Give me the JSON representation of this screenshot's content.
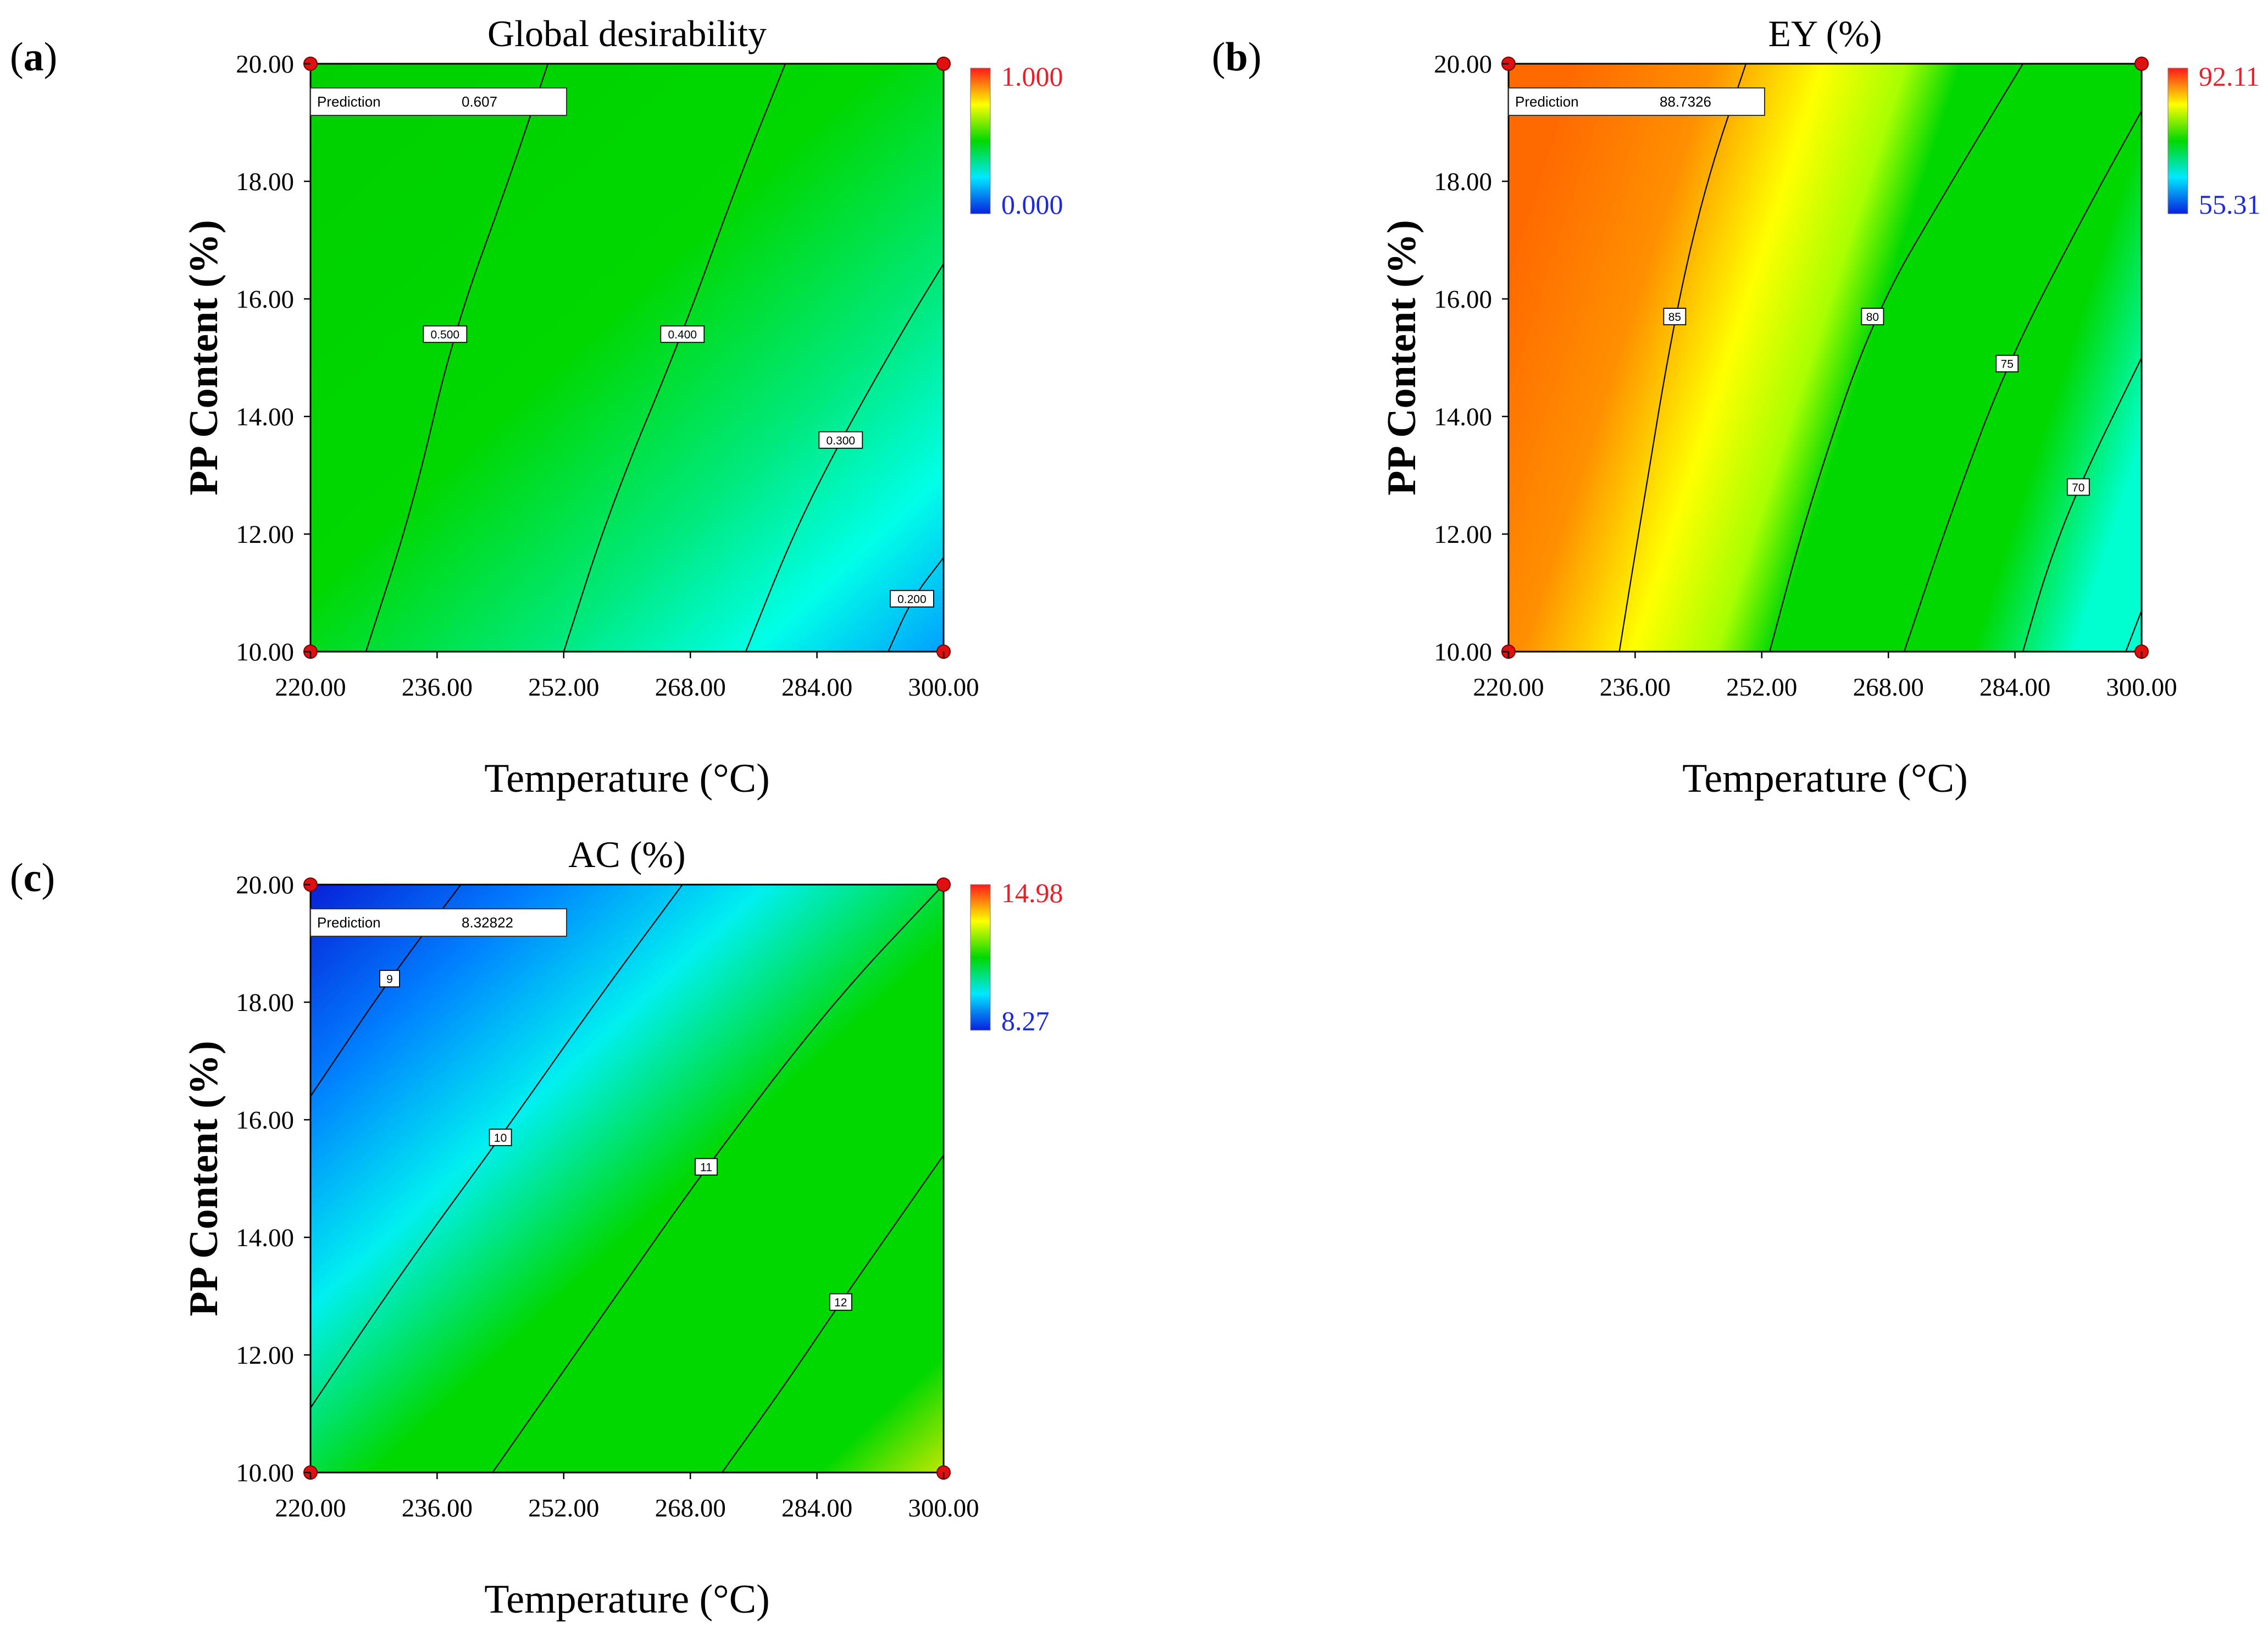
{
  "chart_data": [
    {
      "type": "contour",
      "panel_label": "a",
      "title": "Global desirability",
      "xlabel": "Temperature (°C)",
      "ylabel": "PP Content (%)",
      "xlim": [
        220,
        300
      ],
      "ylim": [
        10,
        20
      ],
      "x_ticks": [
        "220.00",
        "236.00",
        "252.00",
        "268.00",
        "284.00",
        "300.00"
      ],
      "y_ticks": [
        "10.00",
        "12.00",
        "14.00",
        "16.00",
        "18.00",
        "20.00"
      ],
      "colorbar": {
        "max_label": "1.000",
        "min_label": "0.000",
        "max_color": "#e8202a",
        "min_color": "#1c2bd6"
      },
      "prediction": {
        "label": "Prediction",
        "value": "0.607",
        "x": 220,
        "y": 20
      },
      "design_points": [
        [
          220,
          20
        ],
        [
          300,
          20
        ],
        [
          220,
          10
        ],
        [
          300,
          10
        ]
      ],
      "contours": [
        {
          "label": "0.500",
          "label_at": [
            237,
            15.4
          ],
          "points": [
            [
              227,
              10
            ],
            [
              233,
              12.5
            ],
            [
              238,
              15.4
            ],
            [
              245,
              18
            ],
            [
              250,
              20
            ]
          ]
        },
        {
          "label": "0.400",
          "label_at": [
            267,
            15.4
          ],
          "points": [
            [
              252,
              10
            ],
            [
              258,
              12.5
            ],
            [
              267,
              15.4
            ],
            [
              274,
              18
            ],
            [
              280,
              20
            ]
          ]
        },
        {
          "label": "0.300",
          "label_at": [
            287,
            13.6
          ],
          "points": [
            [
              275,
              10
            ],
            [
              281,
              12
            ],
            [
              287,
              13.6
            ],
            [
              295,
              15.5
            ],
            [
              300,
              16.6
            ]
          ]
        },
        {
          "label": "0.200",
          "label_at": [
            296,
            10.9
          ],
          "points": [
            [
              293,
              10
            ],
            [
              296,
              10.9
            ],
            [
              300,
              11.6
            ]
          ]
        }
      ],
      "value_range": {
        "min": 0.17,
        "max": 0.61
      },
      "colors": {
        "high": "#00d400",
        "mid": "#00e890",
        "low": "#00b8ff",
        "lowest": "#00a0ff"
      }
    },
    {
      "type": "contour",
      "panel_label": "b",
      "title": "EY (%)",
      "xlabel": "Temperature (°C)",
      "ylabel": "PP Content (%)",
      "xlim": [
        220,
        300
      ],
      "ylim": [
        10,
        20
      ],
      "x_ticks": [
        "220.00",
        "236.00",
        "252.00",
        "268.00",
        "284.00",
        "300.00"
      ],
      "y_ticks": [
        "10.00",
        "12.00",
        "14.00",
        "16.00",
        "18.00",
        "20.00"
      ],
      "colorbar": {
        "max_label": "92.11",
        "min_label": "55.31",
        "max_color": "#e8202a",
        "min_color": "#1c2bd6"
      },
      "prediction": {
        "label": "Prediction",
        "value": "88.7326",
        "x": 220,
        "y": 20
      },
      "design_points": [
        [
          220,
          20
        ],
        [
          300,
          20
        ],
        [
          220,
          10
        ],
        [
          300,
          10
        ]
      ],
      "contours": [
        {
          "label": "85",
          "label_at": [
            241,
            15.7
          ],
          "points": [
            [
              234,
              10
            ],
            [
              237,
              12.5
            ],
            [
              241,
              15.7
            ],
            [
              245,
              18
            ],
            [
              250,
              20
            ]
          ]
        },
        {
          "label": "80",
          "label_at": [
            266,
            15.7
          ],
          "points": [
            [
              253,
              10
            ],
            [
              258,
              12.5
            ],
            [
              266,
              15.7
            ],
            [
              276,
              18
            ],
            [
              285,
              20
            ]
          ]
        },
        {
          "label": "75",
          "label_at": [
            283,
            14.9
          ],
          "points": [
            [
              270,
              10
            ],
            [
              276,
              12.4
            ],
            [
              283,
              14.9
            ],
            [
              293,
              17.5
            ],
            [
              300,
              19.2
            ]
          ]
        },
        {
          "label": "70",
          "label_at": [
            292,
            12.8
          ],
          "points": [
            [
              285,
              10
            ],
            [
              288,
              11.4
            ],
            [
              292,
              12.8
            ],
            [
              300,
              15
            ]
          ]
        },
        {
          "label": "",
          "label_at": null,
          "points": [
            [
              298,
              10
            ],
            [
              300,
              10.7
            ]
          ]
        }
      ],
      "colors": {
        "orange": "#ff8000",
        "yellow": "#ffff00",
        "green": "#00d400",
        "cyan": "#00ffd0"
      }
    },
    {
      "type": "contour",
      "panel_label": "c",
      "title": "AC (%)",
      "xlabel": "Temperature (°C)",
      "ylabel": "PP Content (%)",
      "xlim": [
        220,
        300
      ],
      "ylim": [
        10,
        20
      ],
      "x_ticks": [
        "220.00",
        "236.00",
        "252.00",
        "268.00",
        "284.00",
        "300.00"
      ],
      "y_ticks": [
        "10.00",
        "12.00",
        "14.00",
        "16.00",
        "18.00",
        "20.00"
      ],
      "colorbar": {
        "max_label": "14.98",
        "min_label": "8.27",
        "max_color": "#e8202a",
        "min_color": "#1c2bd6"
      },
      "prediction": {
        "label": "Prediction",
        "value": "8.32822",
        "x": 220,
        "y": 20
      },
      "design_points": [
        [
          220,
          20
        ],
        [
          300,
          20
        ],
        [
          220,
          10
        ],
        [
          300,
          10
        ]
      ],
      "contours": [
        {
          "label": "9",
          "label_at": [
            230,
            18.4
          ],
          "points": [
            [
              220,
              16.4
            ],
            [
              230,
              18.4
            ],
            [
              239,
              20
            ]
          ]
        },
        {
          "label": "10",
          "label_at": [
            244,
            15.7
          ],
          "points": [
            [
              220,
              11.1
            ],
            [
              232,
              13.5
            ],
            [
              244,
              15.7
            ],
            [
              256,
              18
            ],
            [
              267,
              20
            ]
          ]
        },
        {
          "label": "11",
          "label_at": [
            270,
            15.2
          ],
          "points": [
            [
              243,
              10
            ],
            [
              256,
              12.5
            ],
            [
              270,
              15.2
            ],
            [
              286,
              18
            ],
            [
              300,
              20
            ]
          ]
        },
        {
          "label": "12",
          "label_at": [
            287,
            12.9
          ],
          "points": [
            [
              272,
              10
            ],
            [
              280,
              11.5
            ],
            [
              287,
              12.9
            ],
            [
              300,
              15.4
            ]
          ]
        }
      ],
      "colors": {
        "blue": "#1030e0",
        "cyan": "#00e8f0",
        "green": "#00d400",
        "yellowgreen": "#b0e000"
      }
    }
  ]
}
